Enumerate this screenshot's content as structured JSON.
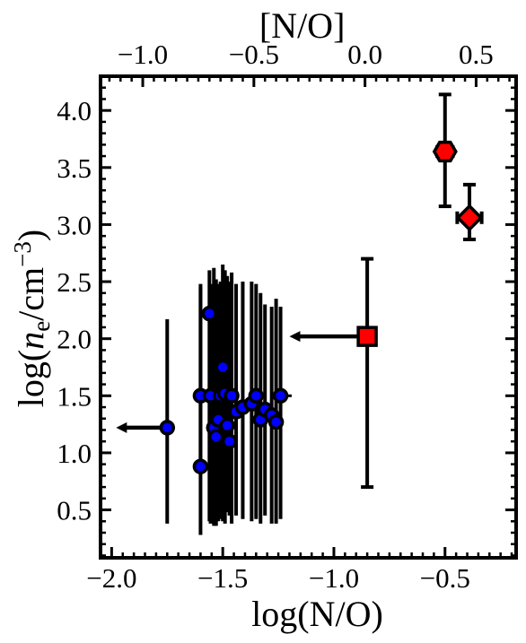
{
  "chart_data": {
    "type": "scatter",
    "title": "",
    "xlabel": "log(N/O)",
    "ylabel_parts": [
      "log(",
      "n",
      "e",
      "/cm",
      "−3",
      ")"
    ],
    "top_xlabel": "[N/O]",
    "xlim": [
      -2.05,
      -0.18
    ],
    "ylim": [
      0.08,
      4.3
    ],
    "top_axis_offset": -0.86,
    "xticks": [
      -2.0,
      -1.5,
      -1.0,
      -0.5
    ],
    "xtick_labels": [
      "−2.0",
      "−1.5",
      "−1.0",
      "−0.5"
    ],
    "top_xticks": [
      -1.0,
      -0.5,
      0.0,
      0.5
    ],
    "top_xtick_labels": [
      "−1.0",
      "−0.5",
      "0.0",
      "0.5"
    ],
    "yticks": [
      0.5,
      1.0,
      1.5,
      2.0,
      2.5,
      3.0,
      3.5,
      4.0
    ],
    "ytick_labels": [
      "0.5",
      "1.0",
      "1.5",
      "2.0",
      "2.5",
      "3.0",
      "3.5",
      "4.0"
    ],
    "grid": false,
    "colors": {
      "blue": "#0000ff",
      "red": "#ff0000",
      "edge": "#000000",
      "errorbar": "#000000"
    },
    "series": [
      {
        "marker": "circle",
        "color": "#0000ff",
        "points": [
          {
            "x": -1.75,
            "y": 1.22,
            "ylo": 0.38,
            "yhi": 2.17,
            "x_upper_limit_to": -1.98
          },
          {
            "x": -1.6,
            "y": 1.5,
            "ylo": 0.82,
            "yhi": 2.48
          },
          {
            "x": -1.6,
            "y": 0.88,
            "ylo": 0.28,
            "yhi": 2.45
          },
          {
            "x": -1.56,
            "y": 2.22,
            "ylo": 0.4,
            "yhi": 2.6
          },
          {
            "x": -1.555,
            "y": 1.5,
            "ylo": 0.38,
            "yhi": 2.48
          },
          {
            "x": -1.54,
            "y": 1.22,
            "ylo": 0.36,
            "yhi": 2.62
          },
          {
            "x": -1.53,
            "y": 1.14,
            "ylo": 0.36,
            "yhi": 2.52
          },
          {
            "x": -1.52,
            "y": 1.29,
            "ylo": 0.4,
            "yhi": 2.48
          },
          {
            "x": -1.51,
            "y": 1.5,
            "ylo": 0.42,
            "yhi": 2.5
          },
          {
            "x": -1.5,
            "y": 1.75,
            "ylo": 0.4,
            "yhi": 2.65
          },
          {
            "x": -1.49,
            "y": 1.52,
            "ylo": 0.38,
            "yhi": 2.6
          },
          {
            "x": -1.48,
            "y": 1.24,
            "ylo": 0.48,
            "yhi": 2.55
          },
          {
            "x": -1.47,
            "y": 1.1,
            "ylo": 0.45,
            "yhi": 2.5
          },
          {
            "x": -1.46,
            "y": 1.5,
            "ylo": 0.38,
            "yhi": 2.58
          },
          {
            "x": -1.44,
            "y": 1.36,
            "ylo": 0.45,
            "yhi": 2.48
          },
          {
            "x": -1.41,
            "y": 1.4,
            "ylo": 0.42,
            "yhi": 2.5
          },
          {
            "x": -1.37,
            "y": 1.43,
            "ylo": 0.4,
            "yhi": 2.5
          },
          {
            "x": -1.35,
            "y": 1.5,
            "ylo": 0.42,
            "yhi": 2.48
          },
          {
            "x": -1.33,
            "y": 1.29,
            "ylo": 0.38,
            "yhi": 2.4
          },
          {
            "x": -1.31,
            "y": 1.38,
            "ylo": 0.45,
            "yhi": 2.3
          },
          {
            "x": -1.28,
            "y": 1.33,
            "ylo": 0.38,
            "yhi": 2.28
          },
          {
            "x": -1.26,
            "y": 1.27,
            "ylo": 0.38,
            "yhi": 2.35
          },
          {
            "x": -1.24,
            "y": 1.5,
            "ylo": 0.42,
            "yhi": 2.28,
            "x_upper_limit_to": -1.19
          }
        ]
      },
      {
        "marker": "square",
        "color": "#ff0000",
        "points": [
          {
            "x": -0.85,
            "y": 2.02,
            "ylo": 0.7,
            "yhi": 2.7,
            "x_upper_limit_to": -1.2
          }
        ]
      },
      {
        "marker": "hexagon",
        "color": "#ff0000",
        "points": [
          {
            "x": -0.5,
            "y": 3.64,
            "ylo": 3.16,
            "yhi": 4.14,
            "xlo": -0.535,
            "xhi": -0.465
          }
        ]
      },
      {
        "marker": "diamond",
        "color": "#ff0000",
        "points": [
          {
            "x": -0.39,
            "y": 3.06,
            "ylo": 2.87,
            "yhi": 3.35,
            "xlo": -0.445,
            "xhi": -0.335
          }
        ]
      }
    ]
  }
}
